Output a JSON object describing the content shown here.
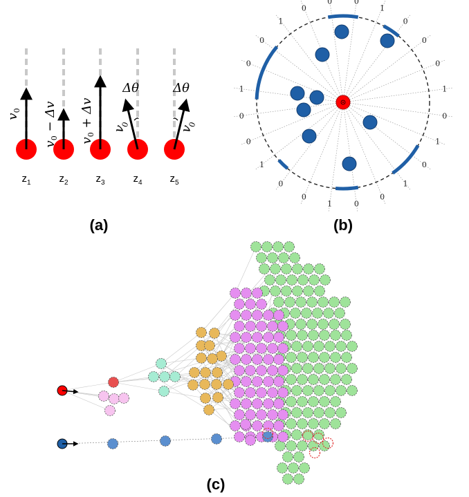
{
  "panel_a": {
    "label": "(a)",
    "states": [
      {
        "name": "z",
        "sub": "1",
        "arrow": "v",
        "arrow_sub": "0",
        "rest": ""
      },
      {
        "name": "z",
        "sub": "2",
        "arrow": "v",
        "arrow_sub": "0",
        "rest": " − Δv"
      },
      {
        "name": "z",
        "sub": "3",
        "arrow": "v",
        "arrow_sub": "0",
        "rest": " + Δv"
      },
      {
        "name": "z",
        "sub": "4",
        "arrow": "v",
        "arrow_sub": "0",
        "rest": "",
        "angle": "Δθ"
      },
      {
        "name": "z",
        "sub": "5",
        "arrow": "v",
        "arrow_sub": "0",
        "rest": "",
        "angle": "Δθ"
      }
    ]
  },
  "panel_b": {
    "label": "(b)",
    "bits": [
      "0",
      "1",
      "0",
      "0",
      "0",
      "1",
      "0",
      "1",
      "0",
      "1",
      "0",
      "0",
      "1",
      "0",
      "0",
      "1",
      "0",
      "0",
      "1",
      "0",
      "0",
      "1",
      "0",
      "0"
    ]
  },
  "panel_c": {
    "label": "(c)"
  },
  "colors": {
    "agent": "#ff0000",
    "obstacle": "#1f5fa6",
    "arc": "#1f5fa6",
    "green": "#9fe39a",
    "magenta": "#e58ef0",
    "orange": "#e8b85a",
    "teal": "#a6ecd3",
    "pink": "#f7c4ef",
    "blue_light": "#5b8fcf"
  }
}
